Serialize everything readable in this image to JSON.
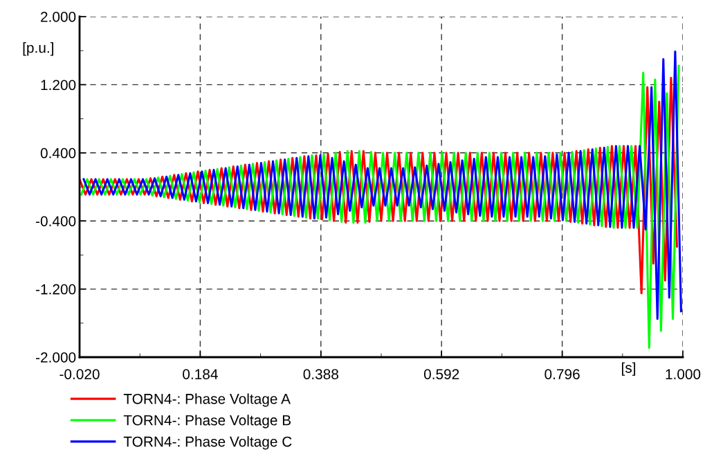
{
  "chart_data": {
    "type": "line",
    "xlabel": "[s]",
    "ylabel": "[p.u.]",
    "xlim": [
      -0.02,
      1.0
    ],
    "ylim": [
      -2.0,
      2.0
    ],
    "xticks": [
      {
        "value": -0.02,
        "label": "-0.020"
      },
      {
        "value": 0.184,
        "label": "0.184"
      },
      {
        "value": 0.388,
        "label": "0.388"
      },
      {
        "value": 0.592,
        "label": "0.592"
      },
      {
        "value": 0.796,
        "label": "0.796"
      },
      {
        "value": 1.0,
        "label": "1.000"
      }
    ],
    "yticks": [
      {
        "value": -2.0,
        "label": "-2.000"
      },
      {
        "value": -1.2,
        "label": "-1.200"
      },
      {
        "value": -0.4,
        "label": "-0.400"
      },
      {
        "value": 0.4,
        "label": "0.400"
      },
      {
        "value": 1.2,
        "label": "1.200"
      },
      {
        "value": 2.0,
        "label": "2.000"
      }
    ],
    "grid": true,
    "legend": "bottom",
    "line_style": "solid",
    "marker": "none",
    "series": [
      {
        "name": "TORN4-: Phase Voltage A",
        "color": "#ff0000",
        "x": [
          -0.02,
          -0.01,
          0,
          0.01,
          0.02,
          0.03,
          0.04,
          0.05,
          0.06,
          0.07,
          0.08,
          0.09,
          0.1,
          0.11,
          0.12,
          0.13,
          0.14,
          0.15,
          0.16,
          0.17,
          0.18,
          0.19,
          0.2,
          0.21,
          0.22,
          0.23,
          0.24,
          0.25,
          0.26,
          0.27,
          0.28,
          0.29,
          0.3,
          0.31,
          0.32,
          0.33,
          0.34,
          0.35,
          0.36,
          0.37,
          0.38,
          0.39,
          0.4,
          0.41,
          0.42,
          0.43,
          0.44,
          0.45,
          0.46,
          0.47,
          0.48,
          0.49,
          0.5,
          0.51,
          0.52,
          0.53,
          0.54,
          0.55,
          0.56,
          0.57,
          0.58,
          0.59,
          0.6,
          0.61,
          0.62,
          0.63,
          0.64,
          0.65,
          0.66,
          0.67,
          0.68,
          0.69,
          0.7,
          0.71,
          0.72,
          0.73,
          0.74,
          0.75,
          0.76,
          0.77,
          0.78,
          0.79,
          0.8,
          0.81,
          0.82,
          0.83,
          0.84,
          0.85,
          0.86,
          0.87,
          0.88,
          0.89,
          0.9,
          0.91,
          0.92,
          0.93,
          0.94,
          0.95,
          0.96,
          0.97,
          0.98,
          0.99
        ],
        "values": [
          0.09,
          -0.09,
          0.09,
          -0.09,
          0.09,
          -0.09,
          0.09,
          -0.09,
          0.09,
          -0.09,
          0.09,
          -0.09,
          0.1,
          -0.11,
          0.12,
          -0.13,
          0.14,
          -0.15,
          0.16,
          -0.17,
          0.18,
          -0.19,
          0.2,
          -0.21,
          0.22,
          -0.23,
          0.24,
          -0.25,
          0.26,
          -0.27,
          0.28,
          -0.29,
          0.3,
          -0.31,
          0.32,
          -0.33,
          0.34,
          -0.35,
          0.36,
          -0.37,
          0.37,
          -0.38,
          0.39,
          -0.4,
          0.41,
          -0.42,
          0.42,
          -0.42,
          0.42,
          -0.41,
          0.4,
          -0.4,
          0.4,
          -0.4,
          0.4,
          -0.4,
          0.4,
          -0.4,
          0.4,
          -0.4,
          0.4,
          -0.4,
          0.4,
          -0.4,
          0.4,
          -0.4,
          0.4,
          -0.4,
          0.4,
          -0.4,
          0.4,
          -0.4,
          0.4,
          -0.4,
          0.4,
          -0.4,
          0.4,
          -0.4,
          0.4,
          -0.4,
          0.4,
          -0.4,
          0.4,
          -0.41,
          0.42,
          -0.43,
          0.44,
          -0.45,
          0.46,
          -0.47,
          0.48,
          -0.48,
          0.48,
          -0.48,
          0.48,
          -1.25,
          1.17,
          -0.9,
          1.0,
          -1.1,
          1.28,
          -0.7
        ]
      },
      {
        "name": "TORN4-: Phase Voltage B",
        "color": "#00ff00",
        "x": [
          -0.017,
          -0.007,
          0.003,
          0.013,
          0.023,
          0.033,
          0.043,
          0.053,
          0.063,
          0.073,
          0.083,
          0.093,
          0.103,
          0.113,
          0.123,
          0.133,
          0.143,
          0.153,
          0.163,
          0.173,
          0.183,
          0.193,
          0.203,
          0.213,
          0.223,
          0.233,
          0.243,
          0.253,
          0.263,
          0.273,
          0.283,
          0.293,
          0.303,
          0.313,
          0.323,
          0.333,
          0.343,
          0.353,
          0.363,
          0.373,
          0.383,
          0.393,
          0.403,
          0.413,
          0.423,
          0.433,
          0.443,
          0.453,
          0.463,
          0.473,
          0.483,
          0.493,
          0.503,
          0.513,
          0.523,
          0.533,
          0.543,
          0.553,
          0.563,
          0.573,
          0.583,
          0.593,
          0.603,
          0.613,
          0.623,
          0.633,
          0.643,
          0.653,
          0.663,
          0.673,
          0.683,
          0.693,
          0.703,
          0.713,
          0.723,
          0.733,
          0.743,
          0.753,
          0.763,
          0.773,
          0.783,
          0.793,
          0.803,
          0.813,
          0.823,
          0.833,
          0.843,
          0.853,
          0.863,
          0.873,
          0.883,
          0.893,
          0.903,
          0.913,
          0.923,
          0.933,
          0.943,
          0.953,
          0.963,
          0.973,
          0.983,
          0.993
        ],
        "values": [
          -0.09,
          0.09,
          -0.09,
          0.09,
          -0.09,
          0.09,
          -0.09,
          0.09,
          -0.09,
          0.09,
          -0.09,
          0.09,
          -0.1,
          0.11,
          -0.12,
          0.13,
          -0.14,
          0.15,
          -0.16,
          0.17,
          -0.18,
          0.19,
          -0.2,
          0.21,
          -0.22,
          0.23,
          -0.24,
          0.25,
          -0.26,
          0.27,
          -0.28,
          0.29,
          -0.3,
          0.31,
          -0.32,
          0.33,
          -0.34,
          0.35,
          -0.36,
          0.37,
          -0.37,
          0.38,
          -0.39,
          0.4,
          -0.41,
          0.42,
          -0.42,
          0.42,
          -0.42,
          0.41,
          -0.4,
          0.4,
          -0.4,
          0.4,
          -0.4,
          0.4,
          -0.4,
          0.4,
          -0.4,
          0.4,
          -0.4,
          0.4,
          -0.4,
          0.4,
          -0.4,
          0.4,
          -0.4,
          0.4,
          -0.4,
          0.4,
          -0.4,
          0.4,
          -0.4,
          0.4,
          -0.4,
          0.4,
          -0.4,
          0.4,
          -0.4,
          0.4,
          -0.4,
          0.4,
          -0.4,
          0.41,
          -0.42,
          0.43,
          -0.44,
          0.45,
          -0.46,
          0.47,
          -0.48,
          0.48,
          -0.48,
          0.48,
          -0.48,
          1.34,
          -1.89,
          1.26,
          -1.69,
          1.1,
          -1.55,
          1.42
        ]
      },
      {
        "name": "TORN4-: Phase Voltage C",
        "color": "#0000ff",
        "x": [
          -0.013,
          -0.003,
          0.007,
          0.017,
          0.027,
          0.037,
          0.047,
          0.057,
          0.067,
          0.077,
          0.087,
          0.097,
          0.107,
          0.117,
          0.127,
          0.137,
          0.147,
          0.157,
          0.167,
          0.177,
          0.187,
          0.197,
          0.207,
          0.217,
          0.227,
          0.237,
          0.247,
          0.257,
          0.267,
          0.277,
          0.287,
          0.297,
          0.307,
          0.317,
          0.327,
          0.337,
          0.347,
          0.357,
          0.367,
          0.377,
          0.387,
          0.397,
          0.407,
          0.417,
          0.427,
          0.437,
          0.447,
          0.457,
          0.467,
          0.477,
          0.487,
          0.497,
          0.507,
          0.517,
          0.527,
          0.537,
          0.547,
          0.557,
          0.567,
          0.577,
          0.587,
          0.597,
          0.607,
          0.617,
          0.627,
          0.637,
          0.647,
          0.657,
          0.667,
          0.677,
          0.687,
          0.697,
          0.707,
          0.717,
          0.727,
          0.737,
          0.747,
          0.757,
          0.767,
          0.777,
          0.787,
          0.797,
          0.807,
          0.817,
          0.827,
          0.837,
          0.847,
          0.857,
          0.867,
          0.877,
          0.887,
          0.897,
          0.907,
          0.917,
          0.927,
          0.937,
          0.947,
          0.957,
          0.967,
          0.977,
          0.987,
          0.997
        ],
        "values": [
          0.09,
          -0.09,
          0.09,
          -0.09,
          0.09,
          -0.09,
          0.09,
          -0.09,
          0.09,
          -0.09,
          0.09,
          -0.09,
          0.1,
          -0.11,
          0.12,
          -0.13,
          0.14,
          -0.15,
          0.16,
          -0.17,
          0.18,
          -0.19,
          0.2,
          -0.21,
          0.22,
          -0.23,
          0.24,
          -0.25,
          0.26,
          -0.27,
          0.28,
          -0.29,
          0.3,
          -0.31,
          0.32,
          -0.33,
          0.34,
          -0.35,
          0.36,
          -0.37,
          0.37,
          -0.36,
          0.34,
          -0.32,
          0.3,
          -0.28,
          0.26,
          -0.24,
          0.22,
          -0.22,
          0.22,
          -0.22,
          0.22,
          -0.22,
          0.22,
          -0.22,
          0.23,
          -0.24,
          0.25,
          -0.26,
          0.27,
          -0.28,
          0.29,
          -0.3,
          0.31,
          -0.32,
          0.33,
          -0.34,
          0.35,
          -0.35,
          0.35,
          -0.35,
          0.35,
          -0.35,
          0.35,
          -0.35,
          0.35,
          -0.35,
          0.36,
          -0.37,
          0.38,
          -0.39,
          0.4,
          -0.41,
          0.42,
          -0.43,
          0.44,
          -0.45,
          0.46,
          -0.47,
          0.48,
          -0.48,
          0.48,
          -0.48,
          0.48,
          -0.5,
          1.17,
          -1.55,
          1.5,
          -1.3,
          1.59,
          -1.46
        ]
      }
    ]
  }
}
